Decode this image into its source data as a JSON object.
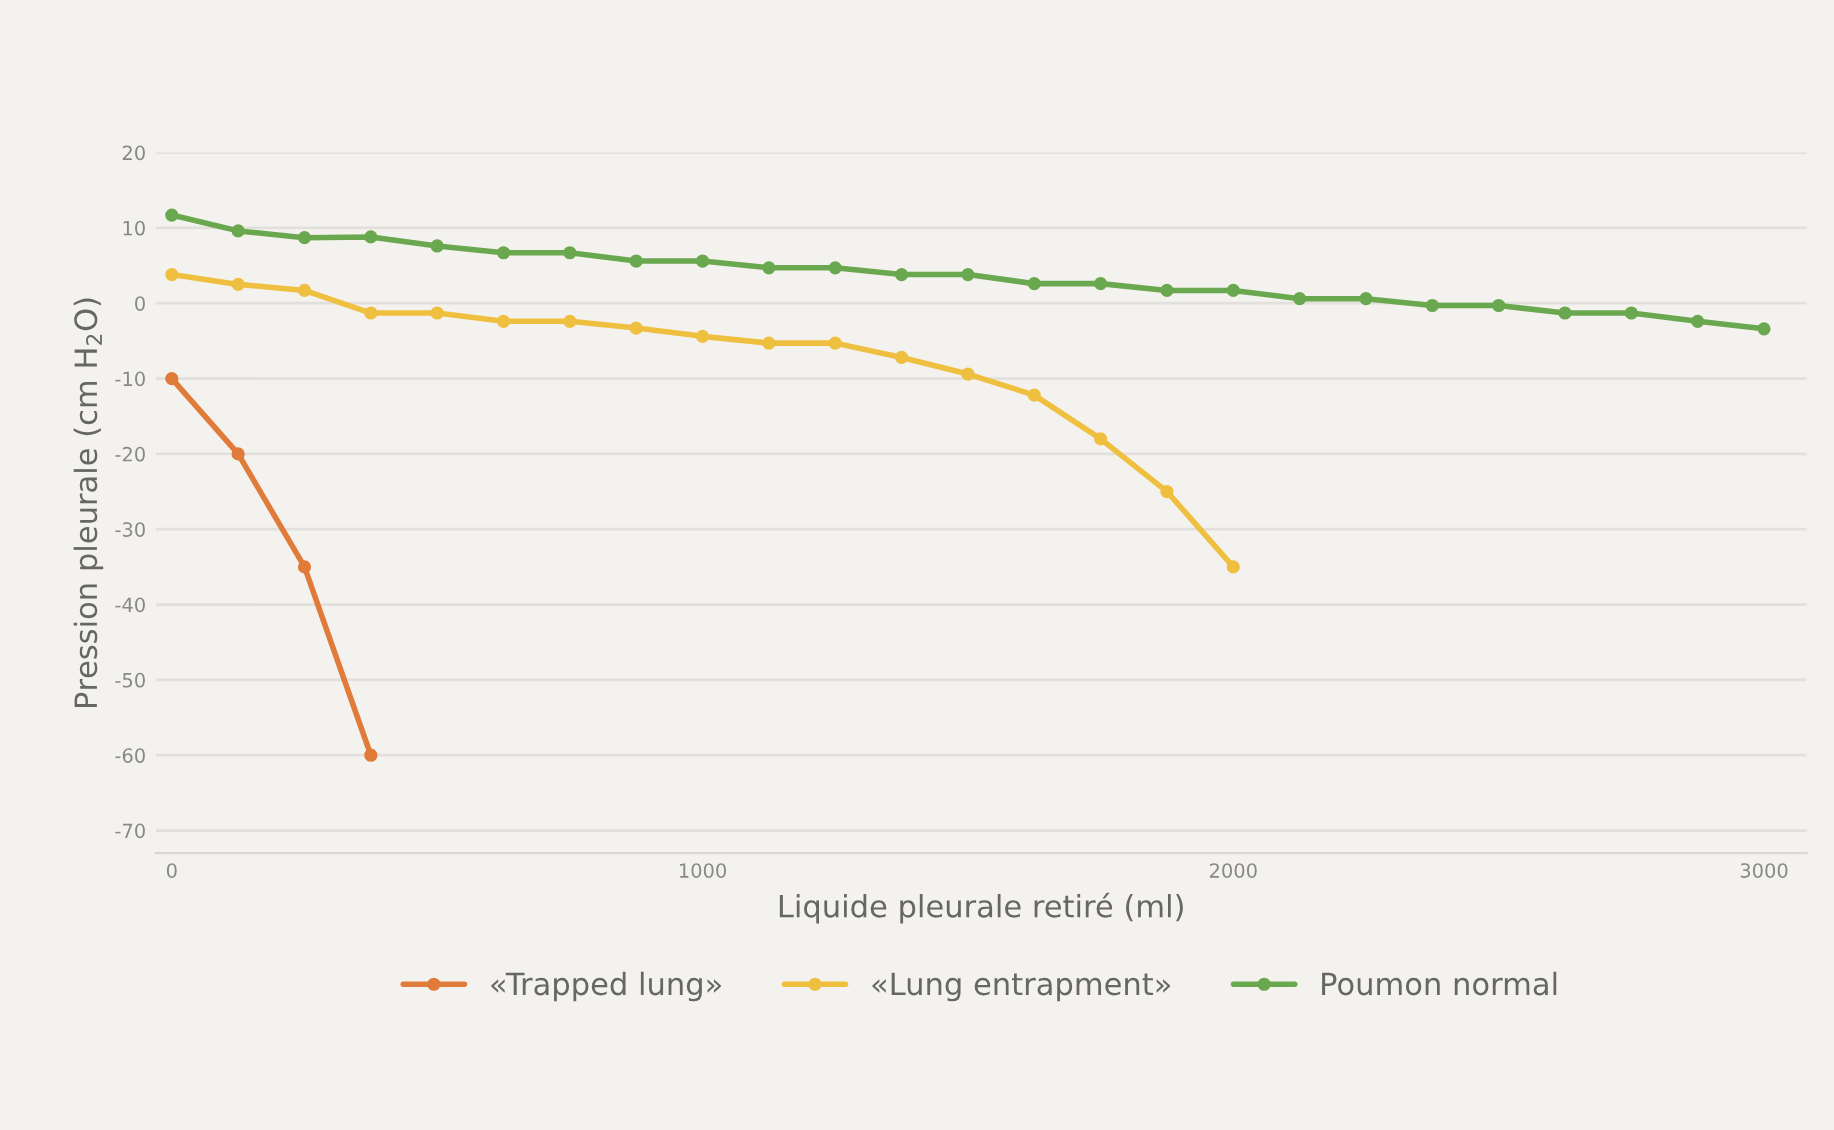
{
  "chart_data": {
    "type": "line",
    "xlabel": "Liquide pleurale retiré (ml)",
    "ylabel": "Pression pleurale (cm H$_{2}$O)",
    "xlim": [
      -30,
      3080
    ],
    "xticks": [
      0,
      1000,
      2000,
      3000
    ],
    "ylim": [
      -73,
      20
    ],
    "yticks": [
      20,
      10,
      0,
      -10,
      -20,
      -30,
      -40,
      -50,
      -60,
      -70
    ],
    "grid": "y",
    "legend": "bottom",
    "marker": "circle",
    "line_style": "solid",
    "series": [
      {
        "name": "«Trapped lung»",
        "color": "#e07b39",
        "x": [
          0,
          125,
          250,
          375
        ],
        "values": [
          -10,
          -20,
          -35,
          -60
        ]
      },
      {
        "name": "«Lung entrapment»",
        "color": "#efbf3f",
        "x": [
          0,
          125,
          250,
          375,
          500,
          625,
          750,
          875,
          1000,
          1125,
          1250,
          1375,
          1500,
          1625,
          1750,
          1875,
          2000
        ],
        "values": [
          3.8,
          2.5,
          1.7,
          -1.3,
          -1.3,
          -2.4,
          -2.4,
          -3.3,
          -4.4,
          -5.3,
          -5.3,
          -7.2,
          -9.4,
          -12.2,
          -18,
          -25,
          -35
        ]
      },
      {
        "name": "Poumon normal",
        "color": "#6aa84f",
        "x": [
          0,
          125,
          250,
          375,
          500,
          625,
          750,
          875,
          1000,
          1125,
          1250,
          1375,
          1500,
          1625,
          1750,
          1875,
          2000,
          2125,
          2250,
          2375,
          2500,
          2625,
          2750,
          2875,
          3000
        ],
        "values": [
          11.7,
          9.6,
          8.7,
          8.8,
          7.6,
          6.7,
          6.7,
          5.6,
          5.6,
          4.7,
          4.7,
          3.8,
          3.8,
          2.6,
          2.6,
          1.7,
          1.7,
          0.6,
          0.6,
          -0.3,
          -0.3,
          -1.3,
          -1.3,
          -2.4,
          -3.4
        ]
      }
    ]
  }
}
